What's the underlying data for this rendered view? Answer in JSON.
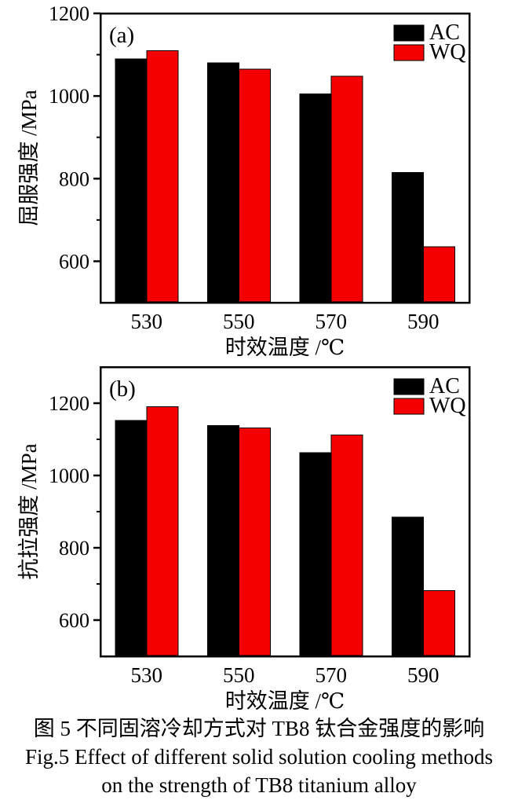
{
  "figure": {
    "caption_zh": "图 5  不同固溶冷却方式对 TB8 钛合金强度的影响",
    "caption_en_line1": "Fig.5  Effect of different solid solution cooling methods",
    "caption_en_line2": "on the strength of TB8 titanium alloy"
  },
  "colors": {
    "ac": "#000000",
    "wq": "#f40000",
    "axis": "#000000",
    "background": "#ffffff"
  },
  "chart_data": [
    {
      "type": "bar",
      "panel_label": "(a)",
      "xlabel": "时效温度 /℃",
      "ylabel": "屈服强度 /MPa",
      "categories": [
        "530",
        "550",
        "570",
        "590"
      ],
      "series": [
        {
          "name": "AC",
          "color": "#000000",
          "values": [
            1090,
            1080,
            1005,
            815
          ]
        },
        {
          "name": "WQ",
          "color": "#f40000",
          "values": [
            1110,
            1065,
            1048,
            635
          ]
        }
      ],
      "ylim": [
        500,
        1200
      ],
      "yticks": [
        600,
        800,
        1000,
        1200
      ],
      "minor_yticks": [
        700,
        900,
        1100
      ],
      "legend": [
        "AC",
        "WQ"
      ],
      "legend_position": "top-right",
      "grid": false
    },
    {
      "type": "bar",
      "panel_label": "(b)",
      "xlabel": "时效温度 /℃",
      "ylabel": "抗拉强度 /MPa",
      "categories": [
        "530",
        "550",
        "570",
        "590"
      ],
      "series": [
        {
          "name": "AC",
          "color": "#000000",
          "values": [
            1152,
            1138,
            1063,
            885
          ]
        },
        {
          "name": "WQ",
          "color": "#f40000",
          "values": [
            1190,
            1131,
            1112,
            682
          ]
        }
      ],
      "ylim": [
        500,
        1300
      ],
      "yticks": [
        600,
        800,
        1000,
        1200
      ],
      "minor_yticks": [
        700,
        900,
        1100
      ],
      "legend": [
        "AC",
        "WQ"
      ],
      "legend_position": "top-right",
      "grid": false
    }
  ]
}
